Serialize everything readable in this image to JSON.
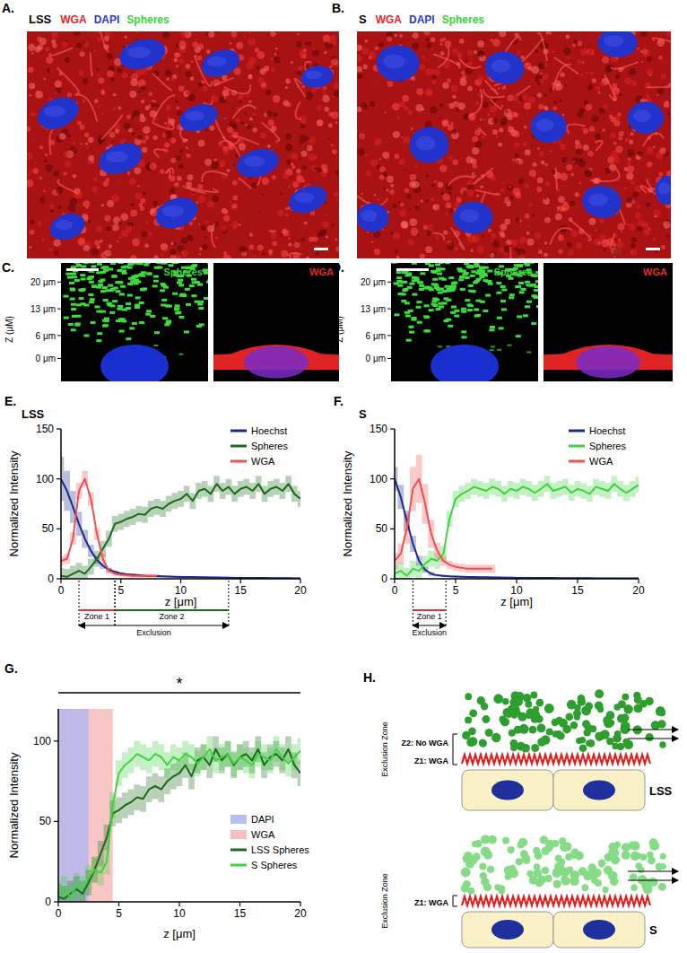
{
  "panels": [
    {
      "label": "A.",
      "condition": "LSS",
      "stains": [
        {
          "text": "WGA",
          "color": "#e8262b"
        },
        {
          "text": "DAPI",
          "color": "#2b3bd6"
        },
        {
          "text": "Spheres",
          "color": "#38d438"
        }
      ]
    },
    {
      "label": "B.",
      "condition": "S",
      "stains": [
        {
          "text": "WGA",
          "color": "#e8262b"
        },
        {
          "text": "DAPI",
          "color": "#2b3bd6"
        },
        {
          "text": "Spheres",
          "color": "#38d438"
        }
      ]
    },
    {
      "label": "C.",
      "left": {
        "title": "Spheres",
        "color": "#38d438"
      },
      "right": {
        "title": "WGA",
        "color": "#e8262b"
      },
      "z_label": "Z (μM)",
      "zlim": [
        -6,
        25
      ],
      "z_ticks": [
        {
          "value": 20,
          "label": "20 μm"
        },
        {
          "value": 13,
          "label": "13 μm"
        },
        {
          "value": 6,
          "label": "6 μm"
        },
        {
          "value": 0,
          "label": "0 μm"
        }
      ]
    },
    {
      "label": "D.",
      "left": {
        "title": "Spheres",
        "color": "#38d438"
      },
      "right": {
        "title": "WGA",
        "color": "#e8262b"
      },
      "z_label": "Z (μM)",
      "zlim": [
        -6,
        25
      ],
      "z_ticks": [
        {
          "value": 20,
          "label": "20 μm"
        },
        {
          "value": 13,
          "label": "13 μm"
        },
        {
          "value": 6,
          "label": "6 μm"
        },
        {
          "value": 0,
          "label": "0 μm"
        }
      ]
    }
  ],
  "chart_data": [
    {
      "type": "line",
      "panel_label": "E.",
      "title": "LSS",
      "x_label": "z [μm]",
      "y_label": "Normalized Intensity",
      "x": [
        0,
        0.5,
        1,
        1.5,
        2,
        2.5,
        3,
        3.5,
        4,
        4.5,
        5,
        5.5,
        6,
        6.5,
        7,
        7.5,
        8,
        8.5,
        9,
        9.5,
        10,
        10.5,
        11,
        11.5,
        12,
        12.5,
        13,
        13.5,
        14,
        14.5,
        15,
        15.5,
        16,
        16.5,
        17,
        17.5,
        18,
        18.5,
        19,
        19.5,
        20
      ],
      "xlim": [
        0,
        20
      ],
      "ylim": [
        0,
        150
      ],
      "xticks": [
        0,
        5,
        10,
        15,
        20
      ],
      "yticks": [
        0,
        50,
        100,
        150
      ],
      "legend": "upper right",
      "series": [
        {
          "name": "Hoechst",
          "color": "#1b2a8a",
          "values": [
            100,
            88,
            72,
            55,
            40,
            28,
            19,
            13,
            9,
            7,
            5.5,
            4.5,
            4,
            3.5,
            3,
            2.8,
            2.6,
            2.4,
            2.2,
            2,
            1.9,
            1.8,
            1.7,
            1.6,
            1.5,
            1.4,
            1.3,
            1.2,
            1.1,
            1,
            1,
            0.9,
            0.9,
            0.8,
            0.8,
            0.7,
            0.7,
            0.6,
            0.6,
            0.5,
            0.5
          ],
          "errors": [
            22,
            20,
            16,
            12,
            9,
            6,
            4,
            3,
            2,
            1.5,
            1,
            1,
            1,
            1,
            1,
            1,
            1,
            1,
            1,
            1,
            1,
            1,
            1,
            1,
            1,
            1,
            1,
            1,
            1,
            1,
            1,
            1,
            1,
            1,
            1,
            1,
            1,
            1,
            1,
            1,
            1
          ]
        },
        {
          "name": "Spheres",
          "color": "#1a6b1a",
          "values": [
            3,
            2,
            5,
            8,
            5,
            12,
            20,
            30,
            40,
            55,
            57,
            60,
            62,
            65,
            64,
            70,
            72,
            70,
            75,
            78,
            80,
            85,
            78,
            88,
            90,
            85,
            95,
            88,
            92,
            85,
            90,
            92,
            88,
            95,
            85,
            90,
            92,
            88,
            95,
            85,
            80
          ],
          "errors": [
            8,
            8,
            8,
            8,
            8,
            8,
            8,
            8,
            8,
            8,
            8,
            8,
            8,
            8,
            8,
            8,
            8,
            8,
            8,
            8,
            8,
            8,
            8,
            8,
            8,
            8,
            8,
            8,
            8,
            8,
            8,
            8,
            8,
            8,
            8,
            8,
            8,
            8,
            8,
            8,
            8
          ]
        },
        {
          "name": "WGA",
          "color": "#f05050",
          "values": [
            18,
            20,
            40,
            88,
            100,
            80,
            45,
            20,
            8,
            5,
            4,
            3.5,
            3,
            3,
            3,
            3,
            3,
            null,
            null,
            null,
            null,
            null,
            null,
            null,
            null,
            null,
            null,
            null,
            null,
            null,
            null,
            null,
            null,
            null,
            null,
            null,
            null,
            null,
            null,
            null,
            null
          ],
          "errors": [
            5,
            5,
            6,
            8,
            8,
            7,
            6,
            5,
            3,
            2,
            2,
            2,
            2,
            2,
            2,
            2,
            2,
            null,
            null,
            null,
            null,
            null,
            null,
            null,
            null,
            null,
            null,
            null,
            null,
            null,
            null,
            null,
            null,
            null,
            null,
            null,
            null,
            null,
            null,
            null,
            null
          ]
        }
      ],
      "zones": [
        {
          "text": "Zone 1",
          "x": [
            1.5,
            4.5
          ],
          "color": "#e03030"
        },
        {
          "text": "Zone 2",
          "x": [
            4.5,
            14
          ],
          "color": "#1a6b1a"
        }
      ],
      "exclusion": {
        "text": "Exclusion",
        "x": [
          1.5,
          14
        ]
      }
    },
    {
      "type": "line",
      "panel_label": "F.",
      "title": "S",
      "x_label": "z [μm]",
      "y_label": "Normalized Intensity",
      "x": [
        0,
        0.5,
        1,
        1.5,
        2,
        2.5,
        3,
        3.5,
        4,
        4.5,
        5,
        5.5,
        6,
        6.5,
        7,
        7.5,
        8,
        8.5,
        9,
        9.5,
        10,
        10.5,
        11,
        11.5,
        12,
        12.5,
        13,
        13.5,
        14,
        14.5,
        15,
        15.5,
        16,
        16.5,
        17,
        17.5,
        18,
        18.5,
        19,
        19.5,
        20
      ],
      "xlim": [
        0,
        20
      ],
      "ylim": [
        0,
        150
      ],
      "xticks": [
        0,
        5,
        10,
        15,
        20
      ],
      "yticks": [
        0,
        50,
        100,
        150
      ],
      "legend": "upper right",
      "series": [
        {
          "name": "Hoechst",
          "color": "#1b2a8a",
          "values": [
            100,
            82,
            58,
            35,
            18,
            9,
            5,
            3.5,
            3,
            2.5,
            2.2,
            2,
            1.8,
            1.7,
            1.6,
            1.5,
            1.4,
            1.3,
            1.2,
            1.1,
            1,
            1,
            0.9,
            0.9,
            0.8,
            0.8,
            0.8,
            0.7,
            0.7,
            0.7,
            0.6,
            0.6,
            0.6,
            0.5,
            0.5,
            0.5,
            0.5,
            0.4,
            0.4,
            0.4,
            0.4
          ],
          "errors": [
            12,
            12,
            10,
            8,
            5,
            3,
            2,
            1,
            1,
            1,
            1,
            1,
            1,
            1,
            1,
            1,
            1,
            1,
            1,
            1,
            1,
            1,
            1,
            1,
            1,
            1,
            1,
            1,
            1,
            1,
            1,
            1,
            1,
            1,
            1,
            1,
            1,
            1,
            1,
            1,
            1
          ]
        },
        {
          "name": "Spheres",
          "color": "#3fd43f",
          "values": [
            5,
            8,
            3,
            10,
            8,
            15,
            20,
            18,
            25,
            60,
            80,
            85,
            88,
            92,
            90,
            88,
            92,
            90,
            85,
            90,
            88,
            92,
            90,
            86,
            90,
            95,
            88,
            90,
            92,
            86,
            90,
            88,
            85,
            92,
            90,
            88,
            95,
            90,
            86,
            90,
            94
          ],
          "errors": [
            8,
            8,
            8,
            8,
            8,
            8,
            8,
            8,
            8,
            8,
            8,
            8,
            8,
            8,
            8,
            8,
            8,
            8,
            8,
            8,
            8,
            8,
            8,
            8,
            8,
            8,
            8,
            8,
            8,
            8,
            8,
            8,
            8,
            8,
            8,
            8,
            8,
            8,
            8,
            8,
            8
          ]
        },
        {
          "name": "WGA",
          "color": "#f05050",
          "values": [
            18,
            25,
            50,
            90,
            100,
            75,
            45,
            28,
            18,
            14,
            12,
            11,
            10,
            10,
            10,
            10,
            10,
            null,
            null,
            null,
            null,
            null,
            null,
            null,
            null,
            null,
            null,
            null,
            null,
            null,
            null,
            null,
            null,
            null,
            null,
            null,
            null,
            null,
            null,
            null,
            null
          ],
          "errors": [
            8,
            10,
            15,
            22,
            24,
            20,
            14,
            8,
            5,
            4,
            4,
            4,
            4,
            4,
            4,
            4,
            4,
            null,
            null,
            null,
            null,
            null,
            null,
            null,
            null,
            null,
            null,
            null,
            null,
            null,
            null,
            null,
            null,
            null,
            null,
            null,
            null,
            null,
            null,
            null,
            null
          ]
        }
      ],
      "zones": [
        {
          "text": "Zone 1",
          "x": [
            1.5,
            4.2
          ],
          "color": "#e03030"
        }
      ],
      "exclusion": {
        "text": "Exclusion",
        "x": [
          1.5,
          4.2
        ]
      }
    },
    {
      "type": "line",
      "panel_label": "G.",
      "x_label": "z [μm]",
      "y_label": "Normalized Intensity",
      "x": [
        0,
        0.5,
        1,
        1.5,
        2,
        2.5,
        3,
        3.5,
        4,
        4.5,
        5,
        5.5,
        6,
        6.5,
        7,
        7.5,
        8,
        8.5,
        9,
        9.5,
        10,
        10.5,
        11,
        11.5,
        12,
        12.5,
        13,
        13.5,
        14,
        14.5,
        15,
        15.5,
        16,
        16.5,
        17,
        17.5,
        18,
        18.5,
        19,
        19.5,
        20
      ],
      "xlim": [
        0,
        20
      ],
      "ylim": [
        0,
        120
      ],
      "xticks": [
        0,
        5,
        10,
        15,
        20
      ],
      "yticks": [
        0,
        50,
        100
      ],
      "legend": "lower right",
      "regions": [
        {
          "name": "DAPI",
          "color": "#a9b4f0",
          "x": [
            0,
            2.5
          ]
        },
        {
          "name": "WGA",
          "color": "#f7b3b3",
          "x": [
            0,
            4.5
          ]
        }
      ],
      "series": [
        {
          "name": "LSS Spheres",
          "color": "#1a6b1a",
          "values": [
            3,
            2,
            5,
            8,
            5,
            12,
            20,
            30,
            40,
            55,
            57,
            60,
            62,
            65,
            64,
            70,
            72,
            70,
            75,
            78,
            80,
            85,
            78,
            88,
            90,
            85,
            95,
            88,
            92,
            85,
            90,
            92,
            88,
            95,
            85,
            90,
            92,
            88,
            95,
            85,
            80
          ],
          "errors": [
            8,
            8,
            8,
            8,
            8,
            8,
            8,
            8,
            8,
            8,
            8,
            8,
            8,
            8,
            8,
            8,
            8,
            8,
            8,
            8,
            8,
            8,
            8,
            8,
            8,
            8,
            8,
            8,
            8,
            8,
            8,
            8,
            8,
            8,
            8,
            8,
            8,
            8,
            8,
            8,
            8
          ]
        },
        {
          "name": "S Spheres",
          "color": "#3fd43f",
          "values": [
            5,
            8,
            3,
            10,
            8,
            15,
            20,
            18,
            25,
            60,
            80,
            85,
            88,
            92,
            90,
            88,
            92,
            90,
            85,
            90,
            88,
            92,
            90,
            86,
            90,
            95,
            88,
            90,
            92,
            86,
            90,
            88,
            85,
            92,
            90,
            88,
            95,
            90,
            86,
            90,
            94
          ],
          "errors": [
            8,
            8,
            8,
            8,
            8,
            8,
            8,
            8,
            8,
            8,
            8,
            8,
            8,
            8,
            8,
            8,
            8,
            8,
            8,
            8,
            8,
            8,
            8,
            8,
            8,
            8,
            8,
            8,
            8,
            8,
            8,
            8,
            8,
            8,
            8,
            8,
            8,
            8,
            8,
            8,
            8
          ]
        }
      ],
      "significance": {
        "text": "*",
        "x": [
          0,
          20
        ]
      }
    }
  ],
  "diagram": {
    "label": "H.",
    "groups": [
      {
        "condition": "LSS",
        "zone_title": "Exclusion Zone",
        "zones": [
          {
            "text": "Z2: No WGA"
          },
          {
            "text": "Z1: WGA"
          }
        ]
      },
      {
        "condition": "S",
        "zone_title": "Exclusion Zone",
        "zones": [
          {
            "text": "Z1: WGA"
          }
        ]
      }
    ]
  }
}
